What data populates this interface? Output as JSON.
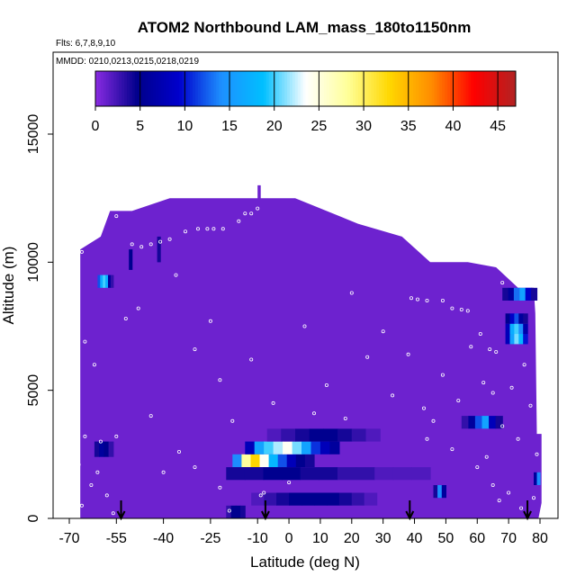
{
  "chart_data": {
    "type": "heatmap",
    "title": "ATOM2 Northbound LAM_mass_180to1150nm",
    "flights_note": "Flts: 6,7,8,9,10",
    "dates_note": "MMDD: 0210,0213,0215,0218,0219",
    "xlabel": "Latitude (deg N)",
    "ylabel": "Altitude (m)",
    "xlim": [
      -70,
      85
    ],
    "ylim": [
      0,
      17500
    ],
    "xticks": [
      -70,
      -55,
      -40,
      -25,
      -10,
      0,
      10,
      20,
      30,
      40,
      50,
      60,
      70,
      80
    ],
    "xtick_labels": [
      "-70",
      "-55",
      "-40",
      "-25",
      "-10",
      "0",
      "10",
      "20",
      "30",
      "40",
      "50",
      "60",
      "70",
      "80"
    ],
    "yticks": [
      0,
      5000,
      10000,
      15000
    ],
    "ytick_labels": [
      "0",
      "5000",
      "10000",
      "15000"
    ],
    "colorbar": {
      "min": 0,
      "max": 47,
      "ticks": [
        0,
        5,
        10,
        15,
        20,
        25,
        30,
        35,
        40,
        45
      ],
      "tick_labels": [
        "0",
        "5",
        "10",
        "15",
        "20",
        "25",
        "30",
        "35",
        "40",
        "45"
      ],
      "colors": [
        "#8a2be2",
        "#00008b",
        "#0000cd",
        "#1e90ff",
        "#00bfff",
        "#ffffff",
        "#ffff99",
        "#ffd700",
        "#ff8c00",
        "#ff0000",
        "#b22222"
      ]
    },
    "background_value": 1,
    "coverage_envelope": [
      [
        -66.5,
        10500
      ],
      [
        -60,
        11000
      ],
      [
        -57,
        12000
      ],
      [
        -50,
        12000
      ],
      [
        -38,
        12500
      ],
      [
        -22,
        12500
      ],
      [
        -10,
        12500
      ],
      [
        -10,
        13000
      ],
      [
        -9,
        13000
      ],
      [
        -9,
        12500
      ],
      [
        2,
        12500
      ],
      [
        8,
        12200
      ],
      [
        22,
        11500
      ],
      [
        36,
        11000
      ],
      [
        45,
        10000
      ],
      [
        57,
        10000
      ],
      [
        66,
        9800
      ],
      [
        73,
        9000
      ],
      [
        78,
        9000
      ],
      [
        78.5,
        8000
      ],
      [
        79,
        3300
      ],
      [
        80.5,
        3300
      ],
      [
        80.5,
        600
      ],
      [
        79.5,
        0
      ],
      [
        -66.5,
        0
      ]
    ],
    "features": [
      {
        "lat": [
          -61,
          -56
        ],
        "alt": [
          9000,
          9500
        ],
        "values": [
          12,
          17,
          20,
          17,
          6,
          3
        ]
      },
      {
        "lat": [
          -62,
          -56
        ],
        "alt": [
          2400,
          3000
        ],
        "values": [
          4,
          6,
          5,
          3
        ]
      },
      {
        "lat": [
          -20,
          -14
        ],
        "alt": [
          0,
          500
        ],
        "values": [
          3,
          5,
          5,
          4
        ]
      },
      {
        "lat": [
          -12,
          28
        ],
        "alt": [
          500,
          1000
        ],
        "values": [
          2,
          3,
          4,
          5,
          5,
          5,
          5,
          4,
          3,
          2
        ]
      },
      {
        "lat": [
          -20,
          45
        ],
        "alt": [
          1500,
          2000
        ],
        "values": [
          4,
          4,
          5,
          5,
          4,
          4,
          3,
          3,
          2,
          2,
          2
        ]
      },
      {
        "lat": [
          -18,
          8
        ],
        "alt": [
          2000,
          2500
        ],
        "values": [
          14,
          28,
          33,
          24,
          18,
          12,
          8,
          5,
          4
        ]
      },
      {
        "lat": [
          -14,
          16
        ],
        "alt": [
          2500,
          3000
        ],
        "values": [
          8,
          16,
          20,
          22,
          24,
          21,
          16,
          11,
          8,
          6
        ]
      },
      {
        "lat": [
          -7,
          29
        ],
        "alt": [
          3000,
          3500
        ],
        "values": [
          2,
          3,
          4,
          5,
          5,
          4,
          3,
          2
        ]
      },
      {
        "lat": [
          55,
          68
        ],
        "alt": [
          3500,
          4000
        ],
        "values": [
          3,
          6,
          12,
          16,
          8,
          4
        ]
      },
      {
        "lat": [
          69,
          76
        ],
        "alt": [
          6800,
          7200
        ],
        "values": [
          8,
          16,
          21,
          18,
          10
        ]
      },
      {
        "lat": [
          69,
          76
        ],
        "alt": [
          7200,
          7600
        ],
        "values": [
          8,
          17,
          20,
          14,
          7
        ]
      },
      {
        "lat": [
          69,
          76
        ],
        "alt": [
          7600,
          8000
        ],
        "values": [
          5,
          9,
          12,
          6,
          4
        ]
      },
      {
        "lat": [
          68,
          79
        ],
        "alt": [
          8500,
          9000
        ],
        "values": [
          4,
          6,
          13,
          16,
          9,
          4
        ]
      },
      {
        "lat": [
          46,
          50
        ],
        "alt": [
          800,
          1300
        ],
        "values": [
          4,
          14,
          6
        ]
      },
      {
        "lat": [
          78,
          80
        ],
        "alt": [
          1300,
          1800
        ],
        "values": [
          6,
          14
        ]
      },
      {
        "lat": [
          -51,
          -50
        ],
        "alt": [
          9700,
          10500
        ],
        "values": [
          5
        ]
      },
      {
        "lat": [
          -42,
          -41
        ],
        "alt": [
          10000,
          11000
        ],
        "values": [
          4
        ]
      }
    ],
    "flight_track": [
      [
        -66,
        10400
      ],
      [
        -64,
        10800
      ],
      [
        -62,
        11500
      ],
      [
        -60,
        11900
      ],
      [
        -58,
        12000
      ],
      [
        -55,
        11800
      ],
      [
        -50,
        10700
      ],
      [
        -47,
        10600
      ],
      [
        -44,
        10700
      ],
      [
        -41,
        10800
      ],
      [
        -38,
        10900
      ],
      [
        -33,
        11200
      ],
      [
        -29,
        11300
      ],
      [
        -26,
        11300
      ],
      [
        -24,
        11300
      ],
      [
        -21,
        11300
      ],
      [
        -16,
        11600
      ],
      [
        -14,
        11900
      ],
      [
        -12,
        11900
      ],
      [
        -10,
        12100
      ],
      [
        39,
        8600
      ],
      [
        41,
        8550
      ],
      [
        44,
        8500
      ],
      [
        49,
        8500
      ],
      [
        52,
        8200
      ],
      [
        55,
        8150
      ],
      [
        57,
        8100
      ],
      [
        61,
        7200
      ],
      [
        64,
        6600
      ],
      [
        66,
        6500
      ],
      [
        68,
        9200
      ],
      [
        70,
        9500
      ],
      [
        72,
        9800
      ],
      [
        -65,
        3200
      ],
      [
        -60,
        3000
      ],
      [
        -55,
        3200
      ],
      [
        -40,
        1800
      ],
      [
        -30,
        2000
      ],
      [
        -22,
        1200
      ],
      [
        -19,
        300
      ],
      [
        -9,
        900
      ],
      [
        -8,
        1000
      ],
      [
        -66,
        500
      ],
      [
        -63,
        1300
      ],
      [
        -61,
        1800
      ],
      [
        -58,
        900
      ],
      [
        -56,
        200
      ],
      [
        -62,
        6000
      ],
      [
        -65,
        6900
      ],
      [
        -52,
        7800
      ],
      [
        -48,
        8200
      ],
      [
        -36,
        9500
      ],
      [
        -25,
        7700
      ],
      [
        -22,
        5400
      ],
      [
        -18,
        3800
      ],
      [
        -12,
        6200
      ],
      [
        -5,
        4500
      ],
      [
        5,
        7500
      ],
      [
        12,
        5200
      ],
      [
        18,
        3900
      ],
      [
        25,
        6300
      ],
      [
        33,
        4800
      ],
      [
        38,
        6400
      ],
      [
        43,
        4300
      ],
      [
        46,
        3800
      ],
      [
        49,
        5600
      ],
      [
        54,
        4600
      ],
      [
        58,
        6700
      ],
      [
        62,
        5300
      ],
      [
        65,
        4900
      ],
      [
        68,
        3600
      ],
      [
        71,
        5100
      ],
      [
        73,
        3100
      ],
      [
        75,
        6000
      ],
      [
        77,
        4400
      ],
      [
        79,
        2500
      ],
      [
        63,
        2400
      ],
      [
        65,
        1300
      ],
      [
        70,
        1000
      ],
      [
        74,
        400
      ],
      [
        78,
        800
      ],
      [
        -67,
        2100
      ],
      [
        -44,
        4000
      ],
      [
        -35,
        2600
      ],
      [
        -30,
        6600
      ],
      [
        0,
        1400
      ],
      [
        8,
        4100
      ],
      [
        20,
        8800
      ],
      [
        30,
        7300
      ],
      [
        44,
        3100
      ],
      [
        52,
        2700
      ],
      [
        60,
        2000
      ],
      [
        67,
        700
      ]
    ],
    "arrows_lat": [
      -53.5,
      -7.5,
      38.5,
      76
    ]
  }
}
